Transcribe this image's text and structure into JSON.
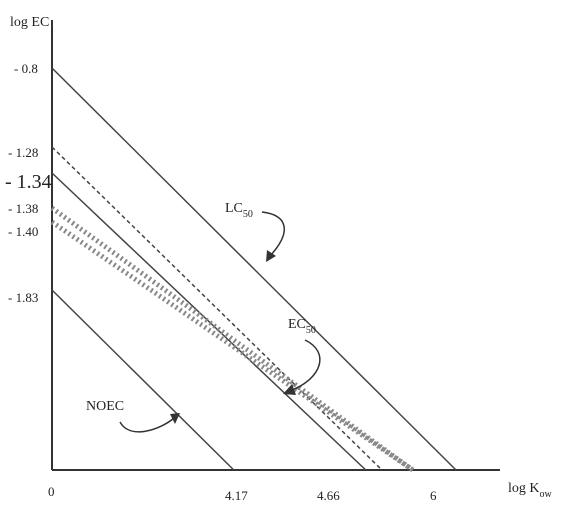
{
  "chart_data": {
    "type": "line",
    "xlabel": {
      "main": "log K",
      "sub": "ow"
    },
    "ylabel": "log EC",
    "x_ticks": [
      "0",
      "4.17",
      "4.66",
      "6"
    ],
    "y_ticks": [
      "- 0.8",
      "- 1.28",
      "- 1.34",
      "- 1.38",
      "- 1.40",
      "- 1.83"
    ],
    "y_emphasized_tick": "- 1.34",
    "series": [
      {
        "name": "LC",
        "name_sub": "50",
        "style": "solid",
        "x": [
          0,
          6
        ],
        "y": [
          -0.8,
          -5.8
        ]
      },
      {
        "name": "EC",
        "name_sub": "50",
        "style": "dashed",
        "x": [
          0,
          4.9
        ],
        "y": [
          -1.28,
          -5.8
        ]
      },
      {
        "style": "solid",
        "x": [
          0,
          4.66
        ],
        "y": [
          -1.34,
          -5.8
        ]
      },
      {
        "style": "hatched-band",
        "x": [
          0,
          4.17
        ],
        "y": [
          -1.38,
          -5.8
        ]
      },
      {
        "style": "hatched-band",
        "x": [
          0,
          4.17
        ],
        "y": [
          -1.4,
          -5.8
        ]
      },
      {
        "name": "NOEC",
        "style": "solid",
        "x": [
          0,
          2.7
        ],
        "y": [
          -1.83,
          -5.8
        ]
      }
    ]
  }
}
